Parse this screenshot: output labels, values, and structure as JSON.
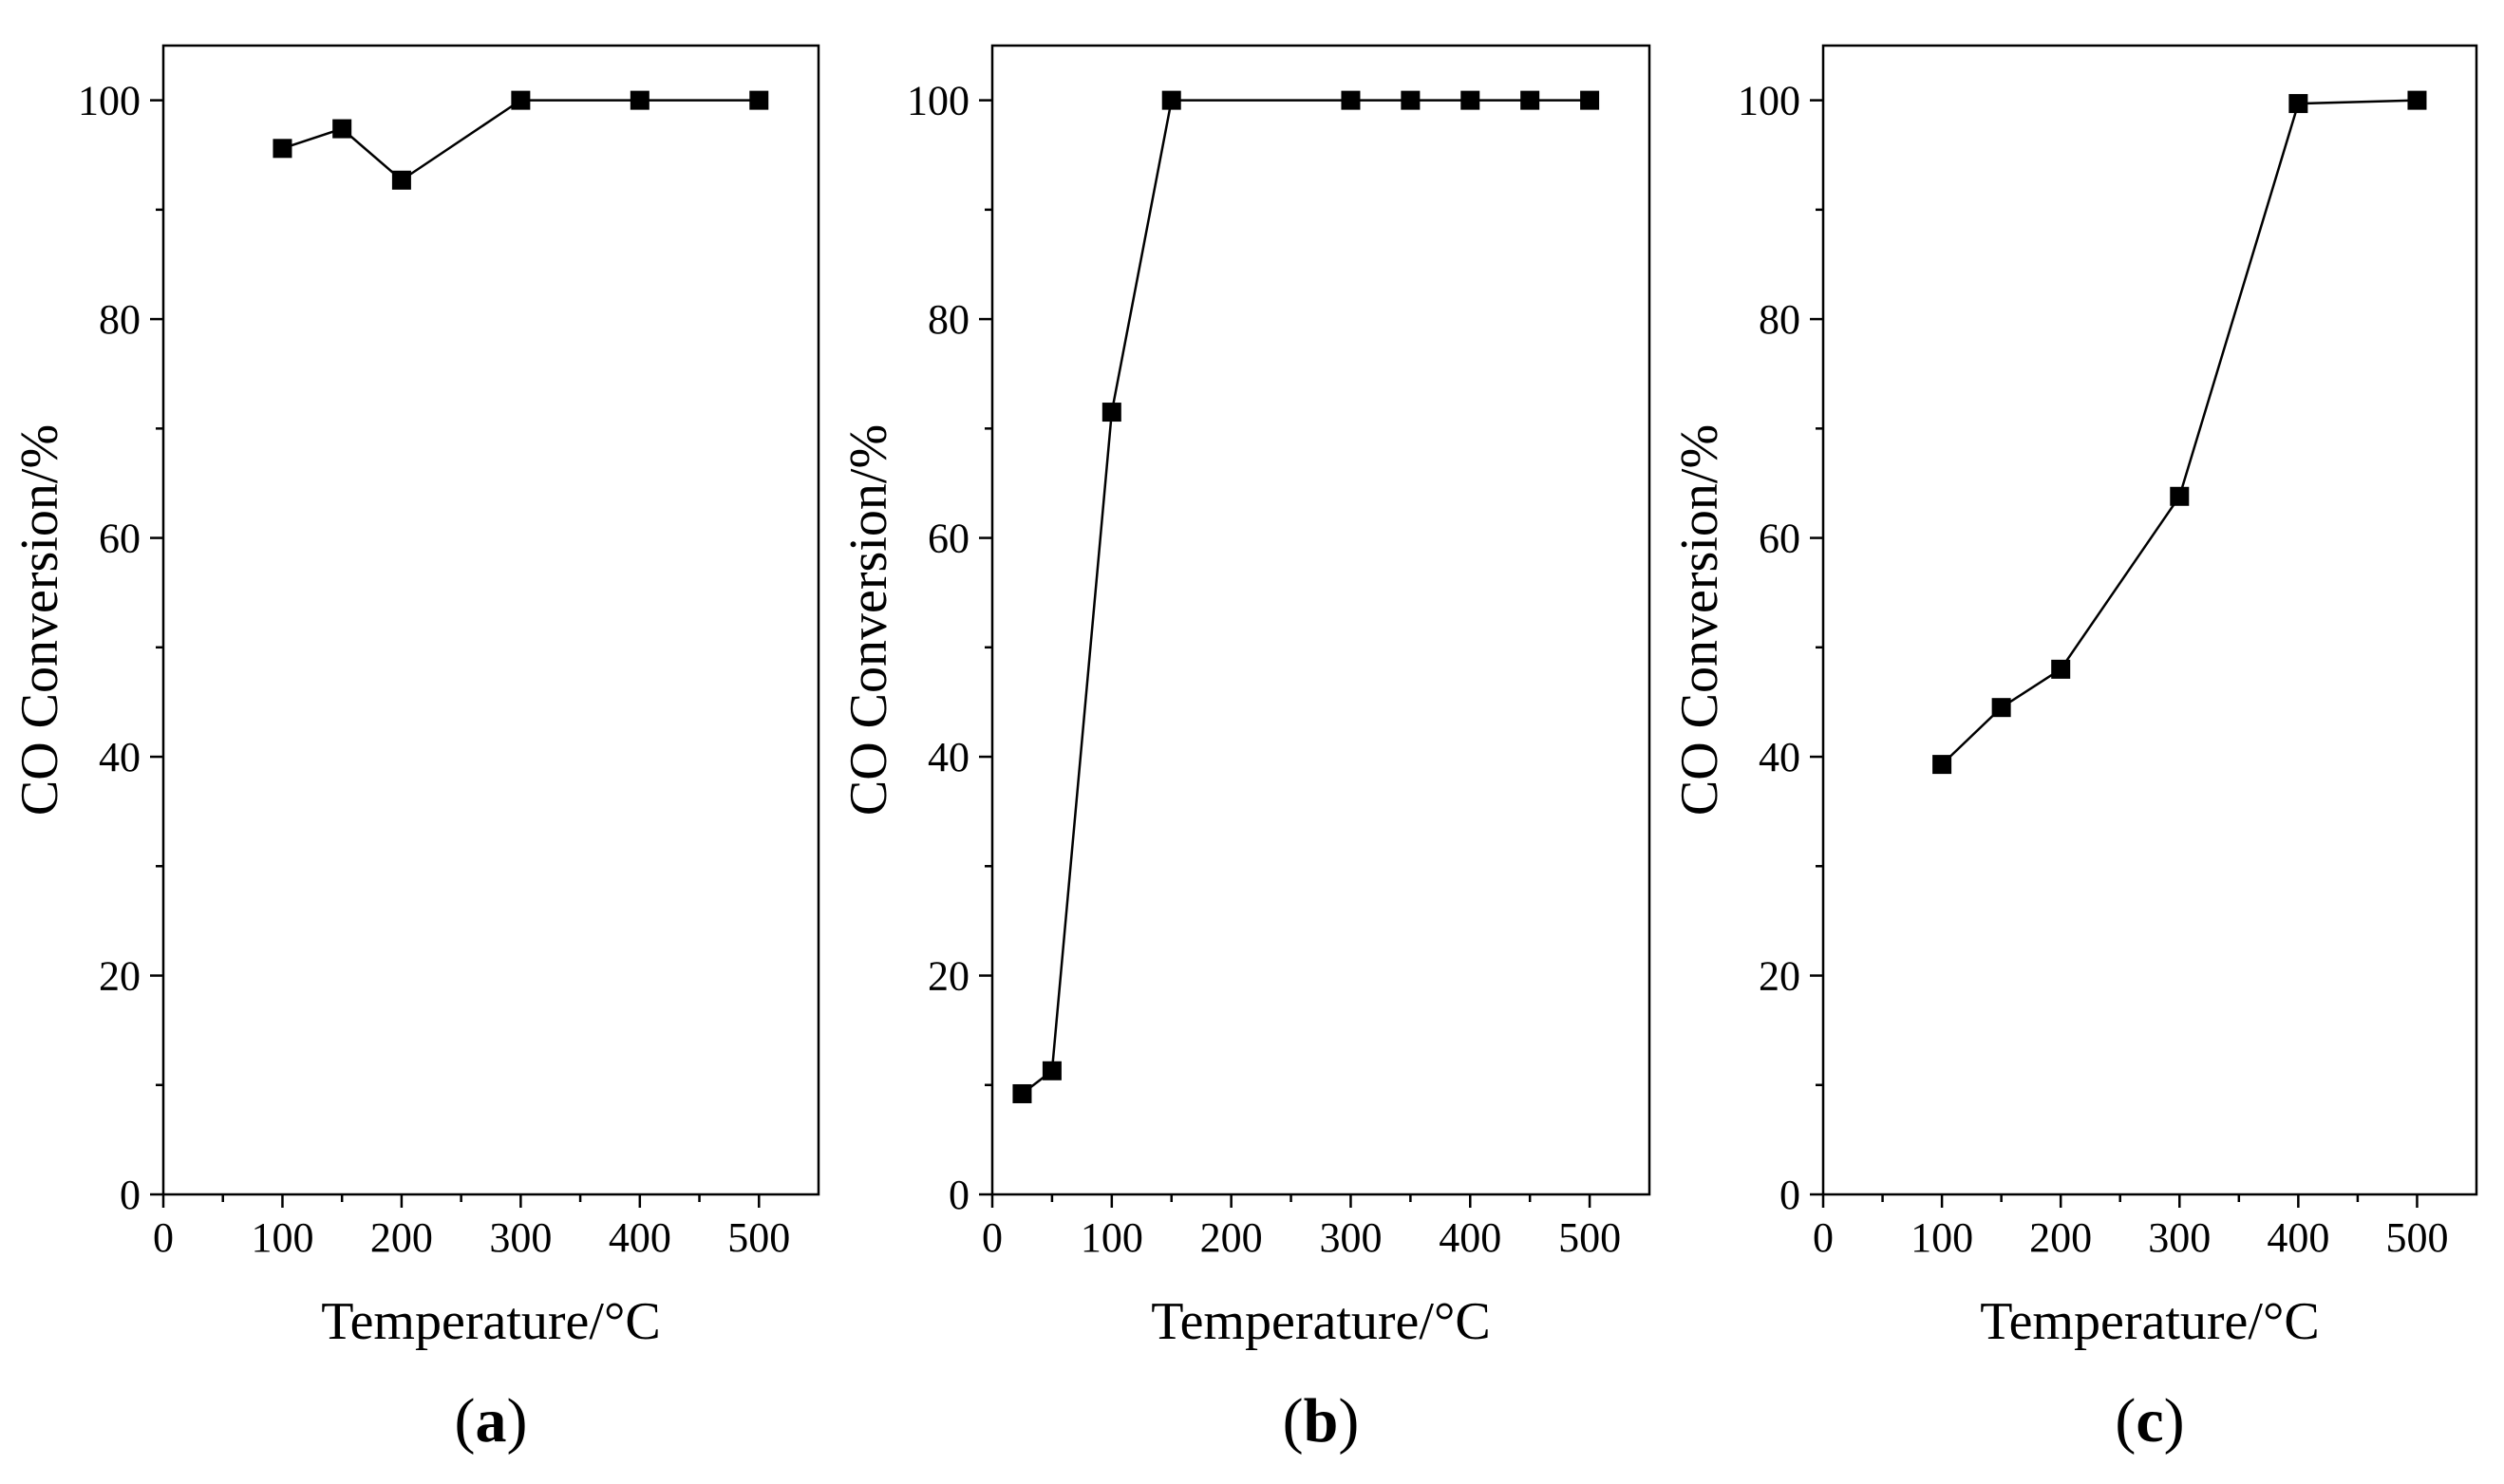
{
  "chart_data": [
    {
      "type": "line",
      "panel_label": "a",
      "xlabel": "Temperature/°C",
      "ylabel": "CO Conversion/%",
      "xlim": [
        0,
        550
      ],
      "ylim": [
        0,
        105
      ],
      "xticks": [
        0,
        100,
        200,
        300,
        400,
        500
      ],
      "yticks": [
        0,
        20,
        40,
        60,
        80,
        100
      ],
      "grid": false,
      "marker": "square",
      "series": [
        {
          "name": "CO conversion",
          "x": [
            100,
            150,
            200,
            300,
            400,
            500
          ],
          "y": [
            95.6,
            97.4,
            92.7,
            100,
            100,
            100
          ]
        }
      ]
    },
    {
      "type": "line",
      "panel_label": "b",
      "xlabel": "Temperature/°C",
      "ylabel": "CO Conversion/%",
      "xlim": [
        0,
        550
      ],
      "ylim": [
        0,
        105
      ],
      "xticks": [
        0,
        100,
        200,
        300,
        400,
        500
      ],
      "yticks": [
        0,
        20,
        40,
        60,
        80,
        100
      ],
      "grid": false,
      "marker": "square",
      "series": [
        {
          "name": "CO conversion",
          "x": [
            25,
            50,
            100,
            150,
            300,
            350,
            400,
            450,
            500
          ],
          "y": [
            9.2,
            11.3,
            71.5,
            100,
            100,
            100,
            100,
            100,
            100
          ]
        }
      ]
    },
    {
      "type": "line",
      "panel_label": "c",
      "xlabel": "Temperature/°C",
      "ylabel": "CO Conversion/%",
      "xlim": [
        0,
        550
      ],
      "ylim": [
        0,
        105
      ],
      "xticks": [
        0,
        100,
        200,
        300,
        400,
        500
      ],
      "yticks": [
        0,
        20,
        40,
        60,
        80,
        100
      ],
      "grid": false,
      "marker": "square",
      "series": [
        {
          "name": "CO conversion",
          "x": [
            100,
            150,
            200,
            300,
            400,
            500
          ],
          "y": [
            39.3,
            44.5,
            48.0,
            63.8,
            99.7,
            100
          ]
        }
      ]
    }
  ]
}
